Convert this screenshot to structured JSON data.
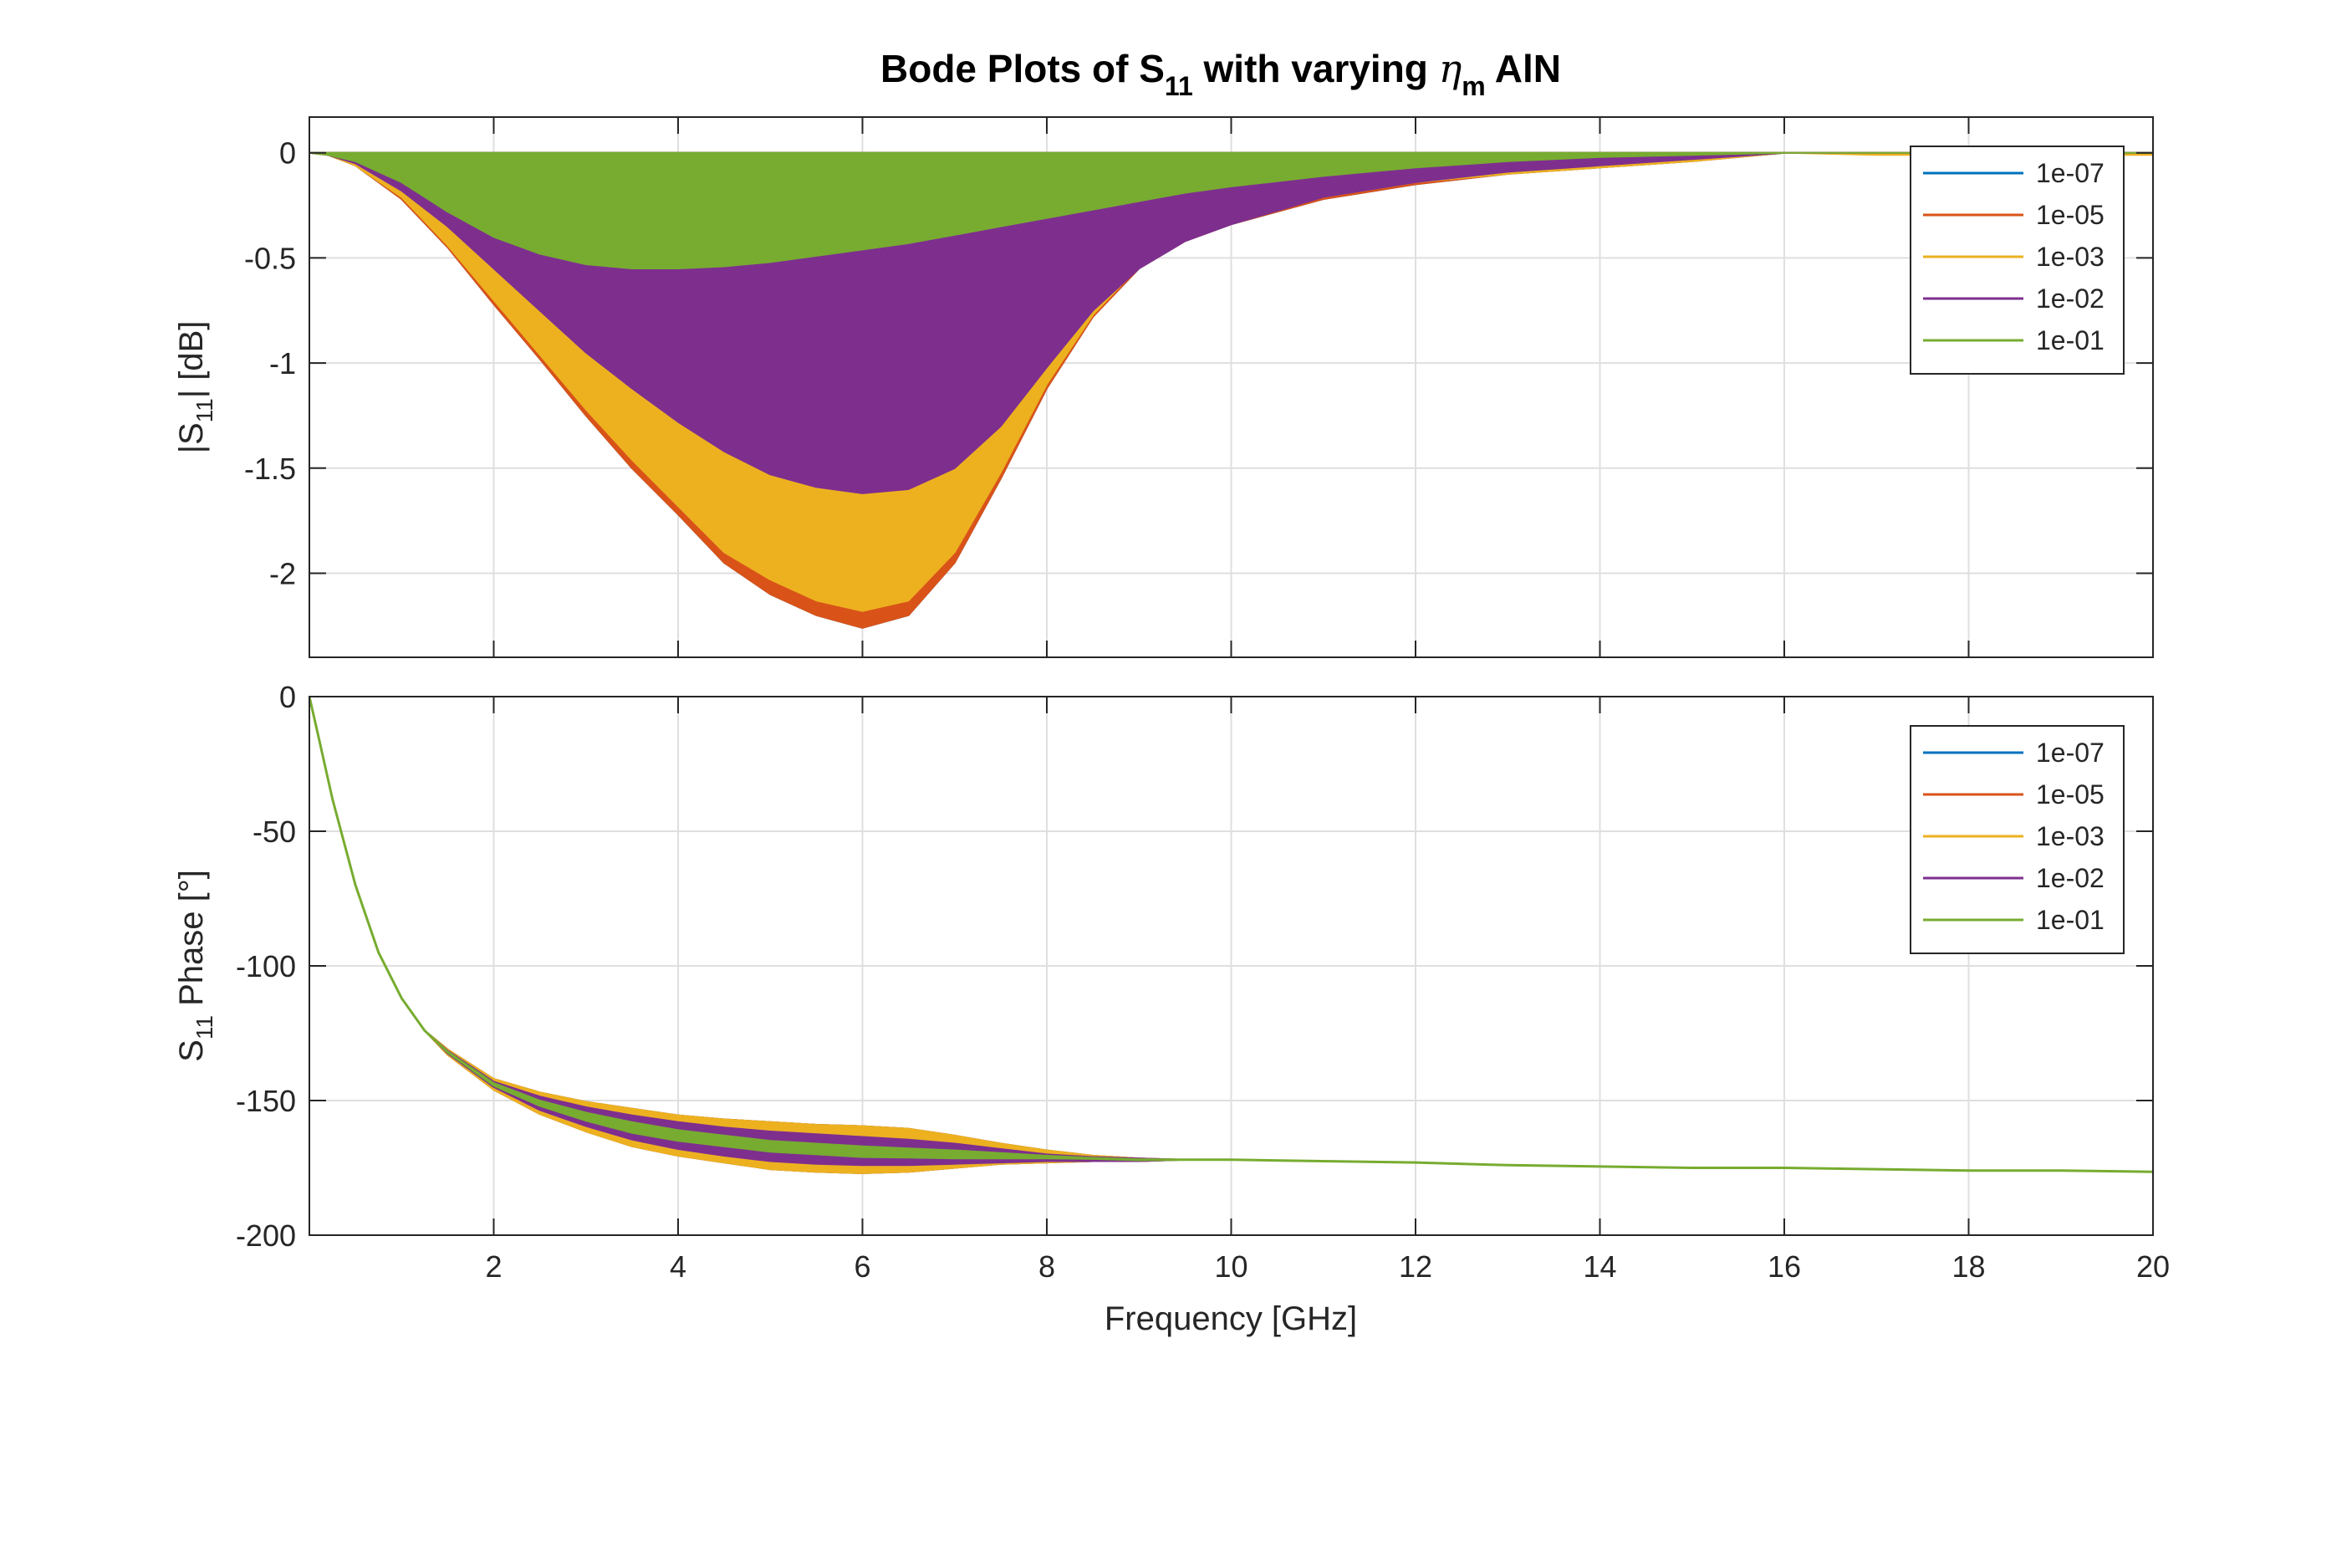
{
  "figure": {
    "title": {
      "main": "Bode Plots of S",
      "sub": "11",
      "mid": " with varying ",
      "symbol": "η",
      "symbol_sub": "m",
      "tail": " AlN"
    }
  },
  "chart_data": [
    {
      "type": "line",
      "panel": "magnitude",
      "ylabel": {
        "pre": "|S",
        "sub": "11",
        "post": "| [dB]"
      },
      "xlabel": "",
      "xlim": [
        0,
        20
      ],
      "ylim": [
        -2.4,
        0.17
      ],
      "xticks": [
        2,
        4,
        6,
        8,
        10,
        12,
        14,
        16,
        18,
        20
      ],
      "xtick_labels": [],
      "yticks": [
        0,
        -0.5,
        -1,
        -1.5,
        -2
      ],
      "ytick_labels": [
        "0",
        "-0.5",
        "-1",
        "-1.5",
        "-2"
      ],
      "grid": true,
      "legend_position": "top-right",
      "legend": [
        "1e-07",
        "1e-05",
        "1e-03",
        "1e-02",
        "1e-01"
      ],
      "x": [
        0,
        0.2,
        0.5,
        1,
        1.5,
        2,
        2.5,
        3,
        3.5,
        4,
        4.5,
        5,
        5.5,
        6,
        6.5,
        7,
        7.5,
        8,
        8.5,
        9,
        9.5,
        10,
        11,
        12,
        13,
        14,
        15,
        16,
        17,
        18,
        19,
        20
      ],
      "series": [
        {
          "name": "1e-07",
          "color": "#0072BD",
          "upper": [
            0,
            0,
            0,
            0,
            0,
            0,
            0,
            0,
            0,
            0,
            0,
            0,
            0,
            0,
            0,
            0,
            0,
            0,
            0,
            0,
            0,
            0,
            0,
            0,
            0,
            0,
            0,
            0,
            0,
            0,
            0,
            0
          ],
          "lower": [
            0,
            -0.01,
            -0.06,
            -0.22,
            -0.45,
            -0.72,
            -0.98,
            -1.25,
            -1.5,
            -1.72,
            -1.95,
            -2.1,
            -2.2,
            -2.26,
            -2.2,
            -1.95,
            -1.55,
            -1.12,
            -0.78,
            -0.55,
            -0.42,
            -0.34,
            -0.22,
            -0.15,
            -0.1,
            -0.07,
            -0.04,
            0,
            0,
            0,
            0,
            0
          ]
        },
        {
          "name": "1e-05",
          "color": "#D95319",
          "upper": [
            0,
            0,
            0,
            0,
            0,
            0,
            0,
            0,
            0,
            0,
            0,
            0,
            0,
            0,
            0,
            0,
            0,
            0,
            0,
            0,
            0,
            0,
            0,
            0,
            0,
            0,
            0,
            0,
            0,
            0,
            0,
            0
          ],
          "lower": [
            0,
            -0.01,
            -0.06,
            -0.22,
            -0.45,
            -0.72,
            -0.98,
            -1.25,
            -1.5,
            -1.72,
            -1.95,
            -2.1,
            -2.2,
            -2.26,
            -2.2,
            -1.95,
            -1.55,
            -1.12,
            -0.78,
            -0.55,
            -0.42,
            -0.34,
            -0.22,
            -0.15,
            -0.1,
            -0.07,
            -0.04,
            0,
            0,
            0,
            0,
            0
          ]
        },
        {
          "name": "1e-03",
          "color": "#EDB120",
          "upper": [
            0,
            0,
            0,
            0,
            0,
            0,
            0,
            0,
            0,
            0,
            0,
            0,
            0,
            0,
            0,
            0,
            0,
            0,
            0,
            0,
            0,
            0,
            0,
            0,
            0,
            0,
            0,
            0,
            0,
            0,
            0,
            0
          ],
          "lower": [
            0,
            -0.01,
            -0.06,
            -0.21,
            -0.44,
            -0.7,
            -0.96,
            -1.22,
            -1.46,
            -1.68,
            -1.9,
            -2.03,
            -2.13,
            -2.18,
            -2.13,
            -1.9,
            -1.52,
            -1.1,
            -0.77,
            -0.54,
            -0.41,
            -0.33,
            -0.21,
            -0.14,
            -0.1,
            -0.07,
            -0.04,
            0,
            -0.01,
            -0.01,
            -0.01,
            -0.01
          ]
        },
        {
          "name": "1e-02",
          "color": "#7E2F8E",
          "upper": [
            0,
            0,
            0,
            0,
            0,
            0,
            0,
            0,
            0,
            0,
            0,
            0,
            0,
            0,
            0,
            0,
            0,
            0,
            0,
            0,
            0,
            0,
            0,
            0,
            0,
            0,
            0,
            0,
            0,
            0,
            0,
            0
          ],
          "lower": [
            0,
            -0.01,
            -0.05,
            -0.18,
            -0.35,
            -0.55,
            -0.75,
            -0.95,
            -1.12,
            -1.28,
            -1.42,
            -1.53,
            -1.59,
            -1.62,
            -1.6,
            -1.5,
            -1.3,
            -1.02,
            -0.75,
            -0.55,
            -0.42,
            -0.34,
            -0.21,
            -0.14,
            -0.09,
            -0.06,
            -0.03,
            0,
            0,
            0,
            0,
            0
          ]
        },
        {
          "name": "1e-01",
          "color": "#77AC30",
          "upper": [
            0,
            0,
            0,
            0,
            0,
            0,
            0,
            0,
            0,
            0,
            0,
            0,
            0,
            0,
            0,
            0,
            0,
            0,
            0,
            0,
            0,
            0,
            0,
            0,
            0,
            0,
            0,
            0,
            0,
            0,
            0,
            0
          ],
          "lower": [
            0,
            -0.01,
            -0.04,
            -0.14,
            -0.28,
            -0.4,
            -0.48,
            -0.53,
            -0.55,
            -0.55,
            -0.54,
            -0.52,
            -0.49,
            -0.46,
            -0.43,
            -0.39,
            -0.35,
            -0.31,
            -0.27,
            -0.23,
            -0.19,
            -0.16,
            -0.11,
            -0.07,
            -0.04,
            -0.02,
            -0.01,
            0,
            0,
            0,
            0,
            0
          ]
        }
      ]
    },
    {
      "type": "line",
      "panel": "phase",
      "ylabel": {
        "pre": "S",
        "sub": "11",
        "post": " Phase [°]"
      },
      "xlabel": "Frequency [GHz]",
      "xlim": [
        0,
        20
      ],
      "ylim": [
        -200,
        0
      ],
      "xticks": [
        2,
        4,
        6,
        8,
        10,
        12,
        14,
        16,
        18,
        20
      ],
      "xtick_labels": [
        "2",
        "4",
        "6",
        "8",
        "10",
        "12",
        "14",
        "16",
        "18",
        "20"
      ],
      "yticks": [
        0,
        -50,
        -100,
        -150,
        -200
      ],
      "ytick_labels": [
        "0",
        "-50",
        "-100",
        "-150",
        "-200"
      ],
      "grid": true,
      "legend_position": "top-right",
      "legend": [
        "1e-07",
        "1e-05",
        "1e-03",
        "1e-02",
        "1e-01"
      ],
      "x": [
        0,
        0.1,
        0.25,
        0.5,
        0.75,
        1,
        1.25,
        1.5,
        2,
        2.5,
        3,
        3.5,
        4,
        4.5,
        5,
        5.5,
        6,
        6.5,
        7,
        7.5,
        8,
        8.5,
        9,
        9.5,
        10,
        11,
        12,
        13,
        14,
        15,
        16,
        17,
        18,
        19,
        20
      ],
      "center": [
        0,
        -15,
        -38,
        -70,
        -95,
        -112,
        -124,
        -132,
        -144,
        -151,
        -156,
        -160,
        -163,
        -165,
        -167,
        -168,
        -169,
        -169.5,
        -170,
        -170.5,
        -171,
        -171.5,
        -172,
        -172,
        -172,
        -172.5,
        -173,
        -174,
        -174.5,
        -175,
        -175,
        -175.5,
        -176,
        -176,
        -176.5
      ],
      "series": [
        {
          "name": "1e-07",
          "color": "#0072BD",
          "upper": [
            0,
            -15,
            -38,
            -70,
            -95,
            -112,
            -124,
            -131,
            -142,
            -147,
            -150.5,
            -153,
            -155.5,
            -157,
            -158,
            -159,
            -159.5,
            -160.5,
            -163,
            -166,
            -168.5,
            -170.5,
            -171.5,
            -172,
            -172,
            -172.5,
            -173,
            -174,
            -174.5,
            -175,
            -175,
            -175.5,
            -176,
            -176,
            -176.5
          ],
          "lower": [
            0,
            -15,
            -38,
            -70,
            -95,
            -112,
            -124,
            -133,
            -146,
            -155,
            -161.5,
            -167,
            -170.5,
            -173,
            -175.5,
            -176.5,
            -177,
            -176.5,
            -175,
            -173.5,
            -173,
            -172.5,
            -172.5,
            -172,
            -172,
            -172.5,
            -173,
            -174,
            -174.5,
            -175,
            -175,
            -175.5,
            -176,
            -176,
            -176.5
          ]
        },
        {
          "name": "1e-05",
          "color": "#D95319",
          "upper": [
            0,
            -15,
            -38,
            -70,
            -95,
            -112,
            -124,
            -131,
            -142,
            -147,
            -150.5,
            -153,
            -155.5,
            -157,
            -158,
            -159,
            -159.5,
            -160.5,
            -163,
            -166,
            -168.5,
            -170.5,
            -171.5,
            -172,
            -172,
            -172.5,
            -173,
            -174,
            -174.5,
            -175,
            -175,
            -175.5,
            -176,
            -176,
            -176.5
          ],
          "lower": [
            0,
            -15,
            -38,
            -70,
            -95,
            -112,
            -124,
            -133,
            -146,
            -155,
            -161.5,
            -167,
            -170.5,
            -173,
            -175.5,
            -176.5,
            -177,
            -176.5,
            -175,
            -173.5,
            -173,
            -172.5,
            -172.5,
            -172,
            -172,
            -172.5,
            -173,
            -174,
            -174.5,
            -175,
            -175,
            -175.5,
            -176,
            -176,
            -176.5
          ]
        },
        {
          "name": "1e-03",
          "color": "#EDB120",
          "upper": [
            0,
            -15,
            -38,
            -70,
            -95,
            -112,
            -124,
            -131,
            -142,
            -147,
            -150.5,
            -153,
            -155.5,
            -157,
            -158,
            -159,
            -159.5,
            -160.5,
            -163,
            -166,
            -168.5,
            -170.5,
            -171.5,
            -172,
            -172,
            -172.5,
            -173,
            -174,
            -174.5,
            -175,
            -175,
            -175.5,
            -176,
            -176,
            -176.5
          ],
          "lower": [
            0,
            -15,
            -38,
            -70,
            -95,
            -112,
            -124,
            -133,
            -146,
            -155,
            -161.5,
            -167,
            -170.5,
            -173,
            -175.5,
            -176.5,
            -177,
            -176.5,
            -175,
            -173.5,
            -173,
            -172.5,
            -172.5,
            -172,
            -172,
            -172.5,
            -173,
            -174,
            -174.5,
            -175,
            -175,
            -175.5,
            -176,
            -176,
            -176.5
          ]
        },
        {
          "name": "1e-02",
          "color": "#7E2F8E",
          "upper": [
            0,
            -15,
            -38,
            -70,
            -95,
            -112,
            -124,
            -131.5,
            -143,
            -148.5,
            -152.5,
            -155.5,
            -158,
            -160,
            -161.5,
            -162.5,
            -163.5,
            -164.5,
            -166,
            -168,
            -170,
            -171,
            -171.5,
            -172,
            -172,
            -172.5,
            -173,
            -174,
            -174.5,
            -175,
            -175,
            -175.5,
            -176,
            -176,
            -176.5
          ],
          "lower": [
            0,
            -15,
            -38,
            -70,
            -95,
            -112,
            -124,
            -132.5,
            -145,
            -153.5,
            -159.5,
            -164.5,
            -168,
            -170.5,
            -172.5,
            -173.5,
            -174,
            -174,
            -173.5,
            -173,
            -172.5,
            -172.5,
            -172.5,
            -172,
            -172,
            -172.5,
            -173,
            -174,
            -174.5,
            -175,
            -175,
            -175.5,
            -176,
            -176,
            -176.5
          ]
        },
        {
          "name": "1e-01",
          "color": "#77AC30",
          "upper": [
            0,
            -15,
            -38,
            -70,
            -95,
            -112,
            -124,
            -131.8,
            -143.5,
            -150,
            -154.5,
            -158,
            -161,
            -163,
            -165,
            -166,
            -167,
            -167.8,
            -168.5,
            -169.5,
            -170.5,
            -171.3,
            -171.8,
            -172,
            -172,
            -172.5,
            -173,
            -174,
            -174.5,
            -175,
            -175,
            -175.5,
            -176,
            -176,
            -176.5
          ],
          "lower": [
            0,
            -15,
            -38,
            -70,
            -95,
            -112,
            -124,
            -132.2,
            -144.5,
            -152,
            -157.5,
            -162,
            -165,
            -167,
            -169,
            -170,
            -171,
            -171.2,
            -171.5,
            -171.5,
            -171.5,
            -171.7,
            -172.2,
            -172,
            -172,
            -172.5,
            -173,
            -174,
            -174.5,
            -175,
            -175,
            -175.5,
            -176,
            -176,
            -176.5
          ]
        }
      ]
    }
  ]
}
